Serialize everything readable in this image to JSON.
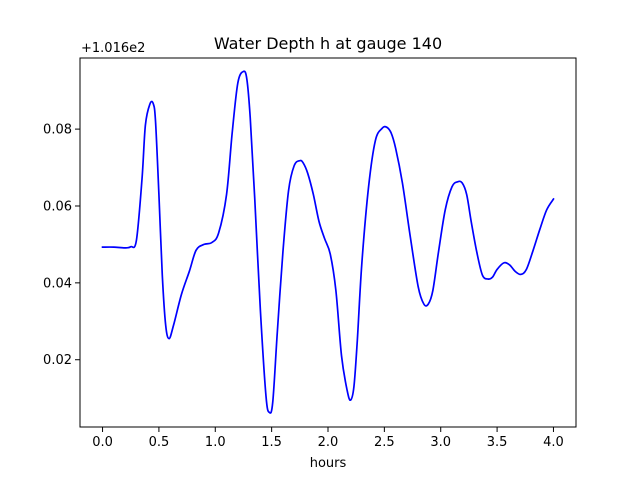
{
  "chart_data": {
    "type": "line",
    "title": "Water Depth h at gauge 140",
    "xlabel": "hours",
    "ylabel": "",
    "y_offset_label": "+1.016e2",
    "xlim": [
      -0.2,
      4.2
    ],
    "ylim": [
      0.0025,
      0.0985
    ],
    "xticks": [
      0.0,
      0.5,
      1.0,
      1.5,
      2.0,
      2.5,
      3.0,
      3.5,
      4.0
    ],
    "xtick_labels": [
      "0.0",
      "0.5",
      "1.0",
      "1.5",
      "2.0",
      "2.5",
      "3.0",
      "3.5",
      "4.0"
    ],
    "yticks": [
      0.02,
      0.04,
      0.06,
      0.08
    ],
    "ytick_labels": [
      "0.02",
      "0.04",
      "0.06",
      "0.08"
    ],
    "grid": false,
    "series": [
      {
        "color": "#0000ff",
        "x": [
          0.0,
          0.1,
          0.2,
          0.25,
          0.3,
          0.35,
          0.38,
          0.42,
          0.45,
          0.47,
          0.5,
          0.53,
          0.56,
          0.59,
          0.63,
          0.7,
          0.77,
          0.83,
          0.9,
          0.97,
          1.03,
          1.1,
          1.15,
          1.2,
          1.25,
          1.28,
          1.31,
          1.35,
          1.4,
          1.45,
          1.48,
          1.51,
          1.55,
          1.6,
          1.65,
          1.7,
          1.75,
          1.78,
          1.82,
          1.87,
          1.92,
          1.97,
          2.02,
          2.07,
          2.12,
          2.17,
          2.2,
          2.23,
          2.26,
          2.3,
          2.36,
          2.42,
          2.48,
          2.52,
          2.56,
          2.6,
          2.66,
          2.73,
          2.8,
          2.85,
          2.89,
          2.93,
          2.98,
          3.04,
          3.1,
          3.15,
          3.19,
          3.23,
          3.27,
          3.32,
          3.37,
          3.42,
          3.46,
          3.5,
          3.56,
          3.61,
          3.66,
          3.71,
          3.76,
          3.82,
          3.88,
          3.94,
          4.0
        ],
        "y": [
          0.0493,
          0.0493,
          0.0491,
          0.0494,
          0.051,
          0.067,
          0.081,
          0.0865,
          0.0866,
          0.082,
          0.063,
          0.042,
          0.029,
          0.0255,
          0.029,
          0.037,
          0.043,
          0.0485,
          0.05,
          0.0505,
          0.053,
          0.063,
          0.079,
          0.092,
          0.095,
          0.093,
          0.083,
          0.062,
          0.033,
          0.0105,
          0.0063,
          0.009,
          0.027,
          0.048,
          0.064,
          0.0705,
          0.0718,
          0.0712,
          0.0685,
          0.063,
          0.056,
          0.0515,
          0.0475,
          0.038,
          0.021,
          0.012,
          0.0095,
          0.013,
          0.025,
          0.045,
          0.065,
          0.077,
          0.0802,
          0.0805,
          0.079,
          0.075,
          0.066,
          0.052,
          0.039,
          0.0345,
          0.0345,
          0.038,
          0.048,
          0.059,
          0.065,
          0.0663,
          0.066,
          0.063,
          0.056,
          0.048,
          0.042,
          0.041,
          0.0415,
          0.0435,
          0.0452,
          0.0447,
          0.043,
          0.0422,
          0.0435,
          0.0485,
          0.054,
          0.059,
          0.0618
        ]
      }
    ]
  }
}
